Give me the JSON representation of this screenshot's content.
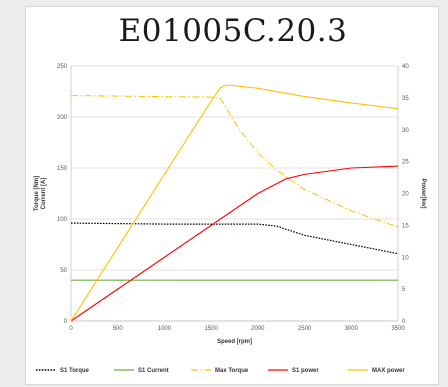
{
  "chart_data": {
    "type": "line",
    "title": "E01005C.20.3",
    "xlabel": "Speed  [rpm]",
    "ylabel_left": [
      "Torque  [Nm]",
      "Current [A]"
    ],
    "ylabel_right": "Power[kw]",
    "xlim": [
      0,
      3500
    ],
    "ylim_left": [
      0,
      250
    ],
    "ylim_right": [
      0,
      40
    ],
    "x_ticks": [
      0,
      500,
      1000,
      1500,
      2000,
      2500,
      3000,
      3500
    ],
    "y_left_ticks": [
      0,
      50,
      100,
      150,
      200,
      250
    ],
    "y_right_ticks": [
      0,
      5,
      10,
      15,
      20,
      25,
      30,
      35,
      40
    ],
    "grid": "horizontal",
    "legend_position": "bottom",
    "series": [
      {
        "name": "S1 Torque",
        "axis": "left",
        "color": "#000000",
        "style": "dotted",
        "x": [
          0,
          500,
          1000,
          1500,
          2000,
          2200,
          2500,
          3000,
          3500
        ],
        "y": [
          96,
          95.5,
          95,
          95,
          95,
          93,
          84,
          75,
          66
        ]
      },
      {
        "name": "S1 Current",
        "axis": "left",
        "color": "#70ad47",
        "style": "solid",
        "x": [
          0,
          3500
        ],
        "y": [
          40,
          40
        ]
      },
      {
        "name": "Max Torque",
        "axis": "left",
        "color": "#ffc000",
        "style": "dashdot",
        "x": [
          0,
          500,
          1000,
          1500,
          1600,
          1800,
          2000,
          2200,
          2500,
          3000,
          3500
        ],
        "y": [
          221,
          220.5,
          220,
          219.5,
          218,
          188,
          165,
          148,
          129,
          108,
          92
        ]
      },
      {
        "name": "S1 power",
        "axis": "right",
        "color": "#ff0000",
        "style": "solid",
        "x": [
          0,
          500,
          1000,
          1500,
          2000,
          2300,
          2500,
          3000,
          3500
        ],
        "y": [
          0,
          5,
          10,
          15,
          20,
          22.3,
          23,
          24,
          24.3
        ]
      },
      {
        "name": "MAX power",
        "axis": "right",
        "color": "#ffc000",
        "style": "solid",
        "x": [
          0,
          500,
          1000,
          1500,
          1600,
          1650,
          1700,
          2000,
          2500,
          3000,
          3500
        ],
        "y": [
          0,
          11.5,
          23,
          34.5,
          36.6,
          36.9,
          37,
          36.5,
          35.2,
          34.2,
          33.3
        ]
      }
    ]
  }
}
